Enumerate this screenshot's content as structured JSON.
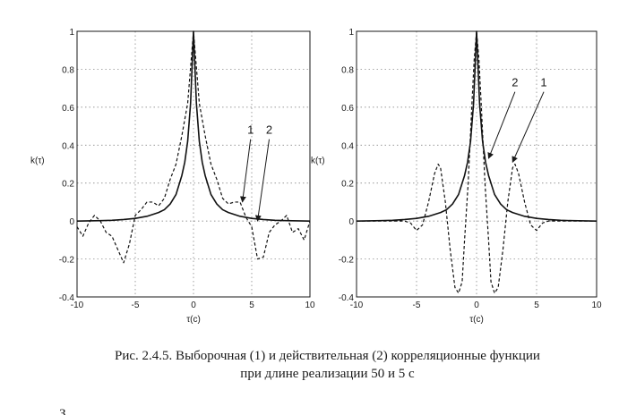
{
  "chart_data": [
    {
      "type": "line",
      "title": "",
      "xlabel": "τ(с)",
      "ylabel": "k(τ)",
      "xlim": [
        -10,
        10
      ],
      "ylim": [
        -0.4,
        1
      ],
      "x_ticks": [
        "-10",
        "-5",
        "0",
        "5",
        "10"
      ],
      "y_ticks": [
        "1",
        "0.8",
        "0.6",
        "0.4",
        "0.2",
        "0",
        "-0.2",
        "-0.4"
      ],
      "grid": true,
      "series": [
        {
          "name": "1",
          "style": "dashed",
          "x": [
            -10,
            -9.5,
            -9,
            -8.5,
            -8,
            -7.5,
            -7,
            -6.5,
            -6,
            -5.5,
            -5,
            -4.5,
            -4,
            -3.5,
            -3,
            -2.5,
            -2,
            -1.5,
            -1,
            -0.5,
            0,
            0.5,
            1,
            1.5,
            2,
            2.5,
            3,
            3.5,
            4,
            4.5,
            5,
            5.5,
            6,
            6.5,
            7,
            7.5,
            8,
            8.5,
            9,
            9.5,
            10
          ],
          "values": [
            -0.03,
            -0.08,
            -0.01,
            0.03,
            0.0,
            -0.06,
            -0.08,
            -0.15,
            -0.22,
            -0.12,
            0.03,
            0.06,
            0.1,
            0.1,
            0.08,
            0.12,
            0.22,
            0.3,
            0.45,
            0.62,
            1.0,
            0.62,
            0.45,
            0.3,
            0.22,
            0.12,
            0.09,
            0.1,
            0.1,
            0.02,
            -0.03,
            -0.2,
            -0.19,
            -0.06,
            -0.02,
            0.0,
            0.03,
            -0.06,
            -0.04,
            -0.1,
            0.0
          ]
        },
        {
          "name": "2",
          "style": "solid",
          "x": [
            -10,
            -9,
            -8,
            -7,
            -6,
            -5,
            -4,
            -3,
            -2.5,
            -2,
            -1.5,
            -1,
            -0.75,
            -0.5,
            -0.25,
            0,
            0.25,
            0.5,
            0.75,
            1,
            1.5,
            2,
            2.5,
            3,
            4,
            5,
            6,
            7,
            8,
            9,
            10
          ],
          "values": [
            0.0,
            0.001,
            0.002,
            0.004,
            0.008,
            0.014,
            0.025,
            0.045,
            0.06,
            0.09,
            0.14,
            0.24,
            0.31,
            0.42,
            0.62,
            1.0,
            0.62,
            0.42,
            0.31,
            0.24,
            0.14,
            0.09,
            0.06,
            0.045,
            0.025,
            0.014,
            0.008,
            0.004,
            0.002,
            0.001,
            0.0
          ]
        }
      ],
      "annotations": [
        {
          "text": "1",
          "label_x": 4.9,
          "label_y": 0.45,
          "arrow_x": 4.2,
          "arrow_y": 0.1
        },
        {
          "text": "2",
          "label_x": 6.5,
          "label_y": 0.45,
          "arrow_x": 5.5,
          "arrow_y": 0.0
        }
      ]
    },
    {
      "type": "line",
      "title": "",
      "xlabel": "τ(с)",
      "ylabel": "k(τ)",
      "xlim": [
        -10,
        10
      ],
      "ylim": [
        -0.4,
        1
      ],
      "x_ticks": [
        "-10",
        "-5",
        "0",
        "5",
        "10"
      ],
      "y_ticks": [
        "1",
        "0.8",
        "0.6",
        "0.4",
        "0.2",
        "0",
        "-0.2",
        "-0.4"
      ],
      "grid": true,
      "series": [
        {
          "name": "1",
          "style": "dashed",
          "x": [
            -10,
            -6,
            -5.5,
            -5,
            -4.5,
            -4,
            -3.5,
            -3.2,
            -3,
            -2.6,
            -2.2,
            -1.8,
            -1.5,
            -1.2,
            -1,
            -0.7,
            -0.4,
            -0.2,
            0,
            0.2,
            0.4,
            0.7,
            1,
            1.2,
            1.5,
            1.8,
            2.2,
            2.6,
            3,
            3.2,
            3.5,
            4,
            4.5,
            5,
            5.5,
            6,
            10
          ],
          "values": [
            0.0,
            0.0,
            -0.01,
            -0.05,
            -0.02,
            0.1,
            0.25,
            0.3,
            0.28,
            0.1,
            -0.15,
            -0.35,
            -0.38,
            -0.32,
            -0.1,
            0.2,
            0.6,
            0.85,
            1.0,
            0.85,
            0.6,
            0.2,
            -0.1,
            -0.32,
            -0.38,
            -0.35,
            -0.15,
            0.1,
            0.28,
            0.3,
            0.25,
            0.1,
            -0.02,
            -0.05,
            -0.01,
            0.0,
            0.0
          ]
        },
        {
          "name": "2",
          "style": "solid",
          "x": [
            -10,
            -9,
            -8,
            -7,
            -6,
            -5,
            -4,
            -3,
            -2.5,
            -2,
            -1.5,
            -1,
            -0.75,
            -0.5,
            -0.25,
            0,
            0.25,
            0.5,
            0.75,
            1,
            1.5,
            2,
            2.5,
            3,
            4,
            5,
            6,
            7,
            8,
            9,
            10
          ],
          "values": [
            0.0,
            0.001,
            0.002,
            0.004,
            0.008,
            0.014,
            0.025,
            0.045,
            0.06,
            0.09,
            0.14,
            0.24,
            0.31,
            0.42,
            0.62,
            1.0,
            0.62,
            0.42,
            0.31,
            0.24,
            0.14,
            0.09,
            0.06,
            0.045,
            0.025,
            0.014,
            0.008,
            0.004,
            0.002,
            0.001,
            0.0
          ]
        }
      ],
      "annotations": [
        {
          "text": "2",
          "label_x": 3.2,
          "label_y": 0.7,
          "arrow_x": 1.0,
          "arrow_y": 0.33
        },
        {
          "text": "1",
          "label_x": 5.6,
          "label_y": 0.7,
          "arrow_x": 3.0,
          "arrow_y": 0.31
        }
      ]
    }
  ],
  "caption": {
    "line1": "Рис. 2.4.5. Выборочная (1) и действительная (2) корреляционные функции",
    "line2": "при  длине реализации 50 и 5 с"
  },
  "body_text": "З"
}
